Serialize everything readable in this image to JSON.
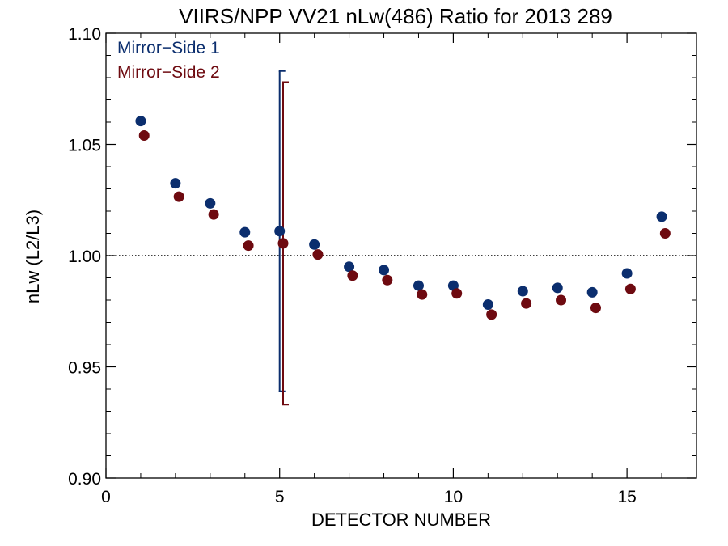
{
  "chart_data": {
    "type": "scatter",
    "title": "VIIRS/NPP VV21 nLw(486) Ratio for 2013 289",
    "xlabel": "DETECTOR NUMBER",
    "ylabel": "nLw (L2/L3)",
    "xlim": [
      0,
      17
    ],
    "ylim": [
      0.9,
      1.1
    ],
    "x_ticks": [
      0,
      5,
      10,
      15
    ],
    "x_tick_labels": [
      "0",
      "5",
      "10",
      "15"
    ],
    "y_ticks": [
      0.9,
      0.95,
      1.0,
      1.05,
      1.1
    ],
    "y_tick_labels": [
      "0.90",
      "0.95",
      "1.00",
      "1.05",
      "1.10"
    ],
    "reference_line": 1.0,
    "legend_position": "top-left",
    "series": [
      {
        "name": "Mirror−Side 1",
        "color": "#0b2e6e",
        "x": [
          1,
          2,
          3,
          4,
          5,
          6,
          7,
          8,
          9,
          10,
          11,
          12,
          13,
          14,
          15,
          16
        ],
        "values": [
          1.0605,
          1.0325,
          1.0235,
          1.0105,
          1.011,
          1.005,
          0.995,
          0.9935,
          0.9865,
          0.9865,
          0.978,
          0.984,
          0.9855,
          0.9835,
          0.992,
          1.0175
        ],
        "error_bar": {
          "x": 5,
          "low": 0.939,
          "high": 1.083
        }
      },
      {
        "name": "Mirror−Side 2",
        "color": "#6e0a10",
        "x": [
          1.1,
          2.1,
          3.1,
          4.1,
          5.1,
          6.1,
          7.1,
          8.1,
          9.1,
          10.1,
          11.1,
          12.1,
          13.1,
          14.1,
          15.1,
          16.1
        ],
        "values": [
          1.054,
          1.0265,
          1.0185,
          1.0045,
          1.0055,
          1.0005,
          0.991,
          0.989,
          0.9825,
          0.983,
          0.9735,
          0.9785,
          0.98,
          0.9765,
          0.985,
          1.01
        ],
        "error_bar": {
          "x": 5.1,
          "low": 0.933,
          "high": 1.078
        }
      }
    ]
  }
}
